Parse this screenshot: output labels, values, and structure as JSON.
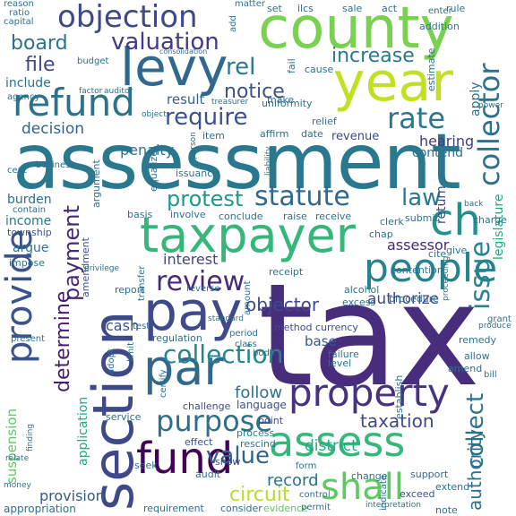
{
  "words": [
    {
      "text": "tax",
      "color": "#472d7b"
    },
    {
      "text": "assessment",
      "color": "#2a788e"
    },
    {
      "text": "section",
      "color": "#3e4989"
    },
    {
      "text": "county",
      "color": "#7ad151"
    },
    {
      "text": "year",
      "color": "#c2df23"
    },
    {
      "text": "levy",
      "color": "#31688e"
    },
    {
      "text": "pay",
      "color": "#3e4a89"
    },
    {
      "text": "taxpayer",
      "color": "#35b779"
    },
    {
      "text": "par",
      "color": "#31688e"
    },
    {
      "text": "property",
      "color": "#46327e"
    },
    {
      "text": "assess",
      "color": "#35b779"
    },
    {
      "text": "provide",
      "color": "#3b528b"
    },
    {
      "text": "refund",
      "color": "#2c728e"
    },
    {
      "text": "people",
      "color": "#26828e"
    },
    {
      "text": "ch",
      "color": "#21918c"
    },
    {
      "text": "objection",
      "color": "#3e4989"
    },
    {
      "text": "fund",
      "color": "#440154"
    },
    {
      "text": "shall",
      "color": "#5ec962"
    },
    {
      "text": "collector",
      "color": "#2c728e"
    },
    {
      "text": "valuation",
      "color": "#443983"
    },
    {
      "text": "require",
      "color": "#3b528b"
    },
    {
      "text": "rate",
      "color": "#2a788e"
    },
    {
      "text": "collection",
      "color": "#25858e"
    },
    {
      "text": "purpose",
      "color": "#2d708e"
    },
    {
      "text": "review",
      "color": "#482878"
    },
    {
      "text": "statute",
      "color": "#31688e"
    },
    {
      "text": "protest",
      "color": "#1f988b"
    },
    {
      "text": "value",
      "color": "#33638d"
    },
    {
      "text": "issue",
      "color": "#25858e"
    },
    {
      "text": "law",
      "color": "#2a788e"
    },
    {
      "text": "collect",
      "color": "#2c728e"
    },
    {
      "text": "payment",
      "color": "#472a7a"
    },
    {
      "text": "board",
      "color": "#2c728e"
    },
    {
      "text": "notice",
      "color": "#3b528b"
    },
    {
      "text": "decision",
      "color": "#33638d"
    },
    {
      "text": "increase",
      "color": "#2a788e"
    },
    {
      "text": "rel",
      "color": "#2a788e"
    },
    {
      "text": "file",
      "color": "#3e4989"
    },
    {
      "text": "determine",
      "color": "#481d6f"
    },
    {
      "text": "circuit",
      "color": "#b5de2b"
    },
    {
      "text": "taxation",
      "color": "#3e4a89"
    },
    {
      "text": "authority",
      "color": "#2c728e"
    },
    {
      "text": "record",
      "color": "#2d708e"
    },
    {
      "text": "objector",
      "color": "#3e4a89"
    },
    {
      "text": "interest",
      "color": "#414487"
    },
    {
      "text": "authorize",
      "color": "#3e4989"
    },
    {
      "text": "hearing",
      "color": "#443983"
    },
    {
      "text": "follow",
      "color": "#2c728e"
    },
    {
      "text": "assessor",
      "color": "#482878"
    },
    {
      "text": "provision",
      "color": "#375a8c"
    },
    {
      "text": "application",
      "color": "#22a884"
    },
    {
      "text": "penalty",
      "color": "#2c728e"
    },
    {
      "text": "result",
      "color": "#35608d"
    },
    {
      "text": "include",
      "color": "#2c728e"
    },
    {
      "text": "cash",
      "color": "#3b528b"
    },
    {
      "text": "suspension",
      "color": "#5ec962"
    },
    {
      "text": "district",
      "color": "#25ab82"
    },
    {
      "text": "base",
      "color": "#38588c"
    },
    {
      "text": "contend",
      "color": "#2c728e"
    },
    {
      "text": "revenue",
      "color": "#3e4989"
    },
    {
      "text": "burden",
      "color": "#2c728e"
    },
    {
      "text": "income",
      "color": "#2a788e"
    },
    {
      "text": "argue",
      "color": "#2c728e"
    },
    {
      "text": "legislature",
      "color": "#22a884"
    },
    {
      "text": "return",
      "color": "#3e4989"
    },
    {
      "text": "apply",
      "color": "#2c728e"
    },
    {
      "text": "appropriation",
      "color": "#2c728e"
    },
    {
      "text": "consider",
      "color": "#2c728e"
    },
    {
      "text": "evidence",
      "color": "#5ec962"
    },
    {
      "text": "exceed",
      "color": "#3b528b"
    },
    {
      "text": "requirement",
      "color": "#2c728e"
    },
    {
      "text": "point",
      "color": "#3e4989"
    },
    {
      "text": "process",
      "color": "#25858e"
    },
    {
      "text": "rescind",
      "color": "#2a788e"
    },
    {
      "text": "effect",
      "color": "#3b528b"
    },
    {
      "text": "language",
      "color": "#3b528b"
    },
    {
      "text": "challenge",
      "color": "#3e4989"
    },
    {
      "text": "service",
      "color": "#2c728e"
    },
    {
      "text": "show",
      "color": "#3e4989"
    },
    {
      "text": "seek",
      "color": "#2c728e"
    },
    {
      "text": "audit",
      "color": "#2c728e"
    },
    {
      "text": "amendment",
      "color": "#3b528b"
    },
    {
      "text": "township",
      "color": "#3b528b"
    },
    {
      "text": "impose",
      "color": "#2c728e"
    },
    {
      "text": "report",
      "color": "#2c728e"
    },
    {
      "text": "basis",
      "color": "#2c728e"
    },
    {
      "text": "involve",
      "color": "#2c728e"
    },
    {
      "text": "conclude",
      "color": "#2c728e"
    },
    {
      "text": "receipt",
      "color": "#2c728e"
    },
    {
      "text": "contention",
      "color": "#2c728e"
    },
    {
      "text": "procedure",
      "color": "#2c728e"
    },
    {
      "text": "alcohol",
      "color": "#2c728e"
    },
    {
      "text": "excess",
      "color": "#2c728e"
    },
    {
      "text": "method",
      "color": "#3e4989"
    },
    {
      "text": "currency",
      "color": "#3e4989"
    },
    {
      "text": "failure",
      "color": "#2c728e"
    },
    {
      "text": "level",
      "color": "#2c728e"
    },
    {
      "text": "regulation",
      "color": "#2c728e"
    },
    {
      "text": "establish",
      "color": "#2c728e"
    },
    {
      "text": "remedy",
      "color": "#2c728e"
    },
    {
      "text": "allow",
      "color": "#2c728e"
    },
    {
      "text": "amend",
      "color": "#2c728e"
    },
    {
      "text": "support",
      "color": "#2c728e"
    },
    {
      "text": "extend",
      "color": "#2c728e"
    },
    {
      "text": "change",
      "color": "#2c728e"
    },
    {
      "text": "note",
      "color": "#2c728e"
    },
    {
      "text": "clerk",
      "color": "#2c728e"
    },
    {
      "text": "submit",
      "color": "#2c728e"
    },
    {
      "text": "charge",
      "color": "#2c728e"
    },
    {
      "text": "cite",
      "color": "#2c728e"
    },
    {
      "text": "give",
      "color": "#2c728e"
    },
    {
      "text": "raise",
      "color": "#2c728e"
    },
    {
      "text": "receive",
      "color": "#2c728e"
    },
    {
      "text": "chap",
      "color": "#2c728e"
    },
    {
      "text": "issuance",
      "color": "#2c728e"
    },
    {
      "text": "equalize",
      "color": "#2c728e"
    },
    {
      "text": "argument",
      "color": "#2c728e"
    },
    {
      "text": "business",
      "color": "#2c728e"
    },
    {
      "text": "cent",
      "color": "#2c728e"
    },
    {
      "text": "contain",
      "color": "#2c728e"
    },
    {
      "text": "affirm",
      "color": "#2c728e"
    },
    {
      "text": "date",
      "color": "#2c728e"
    },
    {
      "text": "relief",
      "color": "#2c728e"
    },
    {
      "text": "item",
      "color": "#2c728e"
    },
    {
      "text": "make",
      "color": "#2c728e"
    },
    {
      "text": "uniformity",
      "color": "#2c728e"
    },
    {
      "text": "cause",
      "color": "#2c728e"
    },
    {
      "text": "fail",
      "color": "#2c728e"
    },
    {
      "text": "addition",
      "color": "#2c728e"
    },
    {
      "text": "estimate",
      "color": "#2c728e"
    },
    {
      "text": "enter",
      "color": "#2c728e"
    },
    {
      "text": "rule",
      "color": "#2c728e"
    },
    {
      "text": "sale",
      "color": "#2c728e"
    },
    {
      "text": "act",
      "color": "#2c728e"
    },
    {
      "text": "set",
      "color": "#2c728e"
    },
    {
      "text": "ilcs",
      "color": "#2c728e"
    },
    {
      "text": "budget",
      "color": "#2c728e"
    },
    {
      "text": "agency",
      "color": "#2c728e"
    },
    {
      "text": "capital",
      "color": "#2c728e"
    },
    {
      "text": "ratio",
      "color": "#2c728e"
    },
    {
      "text": "reason",
      "color": "#2c728e"
    },
    {
      "text": "matter",
      "color": "#2c728e"
    },
    {
      "text": "add",
      "color": "#2c728e"
    },
    {
      "text": "test",
      "color": "#2c728e"
    },
    {
      "text": "grant",
      "color": "#2c728e"
    },
    {
      "text": "permit",
      "color": "#2c728e"
    },
    {
      "text": "present",
      "color": "#2c728e"
    },
    {
      "text": "period",
      "color": "#2c728e"
    },
    {
      "text": "class",
      "color": "#2c728e"
    },
    {
      "text": "body",
      "color": "#2c728e"
    },
    {
      "text": "certify",
      "color": "#2c728e"
    },
    {
      "text": "adopt",
      "color": "#2c728e"
    },
    {
      "text": "limit",
      "color": "#2c728e"
    },
    {
      "text": "form",
      "color": "#2c728e"
    },
    {
      "text": "control",
      "color": "#2c728e"
    },
    {
      "text": "indicate",
      "color": "#2c728e"
    },
    {
      "text": "transfer",
      "color": "#2c728e"
    },
    {
      "text": "privilege",
      "color": "#2c728e"
    },
    {
      "text": "reverse",
      "color": "#2c728e"
    },
    {
      "text": "amount",
      "color": "#2c728e"
    },
    {
      "text": "proceeding",
      "color": "#2c728e"
    },
    {
      "text": "bill",
      "color": "#2c728e"
    },
    {
      "text": "treasurer",
      "color": "#2c728e"
    },
    {
      "text": "auditor",
      "color": "#2c728e"
    },
    {
      "text": "factor",
      "color": "#2c728e"
    },
    {
      "text": "liability",
      "color": "#2c728e"
    },
    {
      "text": "back",
      "color": "#2c728e"
    },
    {
      "text": "object",
      "color": "#2c728e"
    },
    {
      "text": "person",
      "color": "#2c728e"
    },
    {
      "text": "relate",
      "color": "#2c728e"
    },
    {
      "text": "finding",
      "color": "#2c728e"
    },
    {
      "text": "standard",
      "color": "#2c728e"
    },
    {
      "text": "interpretation",
      "color": "#2c728e"
    },
    {
      "text": "money",
      "color": "#2c728e"
    },
    {
      "text": "produce",
      "color": "#2c728e"
    },
    {
      "text": "power",
      "color": "#2c728e"
    },
    {
      "text": "consolidation",
      "color": "#2c728e"
    }
  ]
}
